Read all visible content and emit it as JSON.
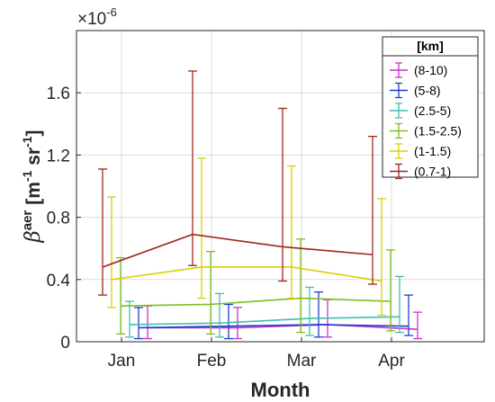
{
  "chart_data": {
    "type": "line",
    "xlabel": "Month",
    "ylabel_base": "β",
    "ylabel_sup": "aer",
    "ylabel_units_open": "[m",
    "ylabel_units_mid": " sr",
    "ylabel_units_close": "]",
    "ylabel_exp": "-1",
    "y_multiplier_base": "×10",
    "y_multiplier_exp": "-6",
    "categories": [
      "Jan",
      "Feb",
      "Mar",
      "Apr"
    ],
    "ylim": [
      0,
      2.0
    ],
    "yticks": [
      0,
      0.4,
      0.8,
      1.2,
      1.6
    ],
    "ytick_labels": [
      "0",
      "0.4",
      "0.8",
      "1.2",
      "1.6"
    ],
    "grid": true,
    "legend_title": "[km]",
    "legend_position": "top-right",
    "series": [
      {
        "name": "(8-10)",
        "color": "#cc33cc",
        "values": [
          0.09,
          0.09,
          0.11,
          0.08
        ],
        "lower": [
          0.02,
          0.02,
          0.03,
          0.02
        ],
        "upper": [
          0.23,
          0.22,
          0.27,
          0.19
        ]
      },
      {
        "name": "(5-8)",
        "color": "#1f3fcc",
        "values": [
          0.09,
          0.1,
          0.11,
          0.1
        ],
        "lower": [
          0.02,
          0.02,
          0.03,
          0.04
        ],
        "upper": [
          0.22,
          0.24,
          0.32,
          0.3
        ]
      },
      {
        "name": "(2.5-5)",
        "color": "#3fbfb0",
        "values": [
          0.11,
          0.12,
          0.15,
          0.16
        ],
        "lower": [
          0.03,
          0.03,
          0.04,
          0.06
        ],
        "upper": [
          0.26,
          0.31,
          0.35,
          0.42
        ]
      },
      {
        "name": "(1.5-2.5)",
        "color": "#7fbf1f",
        "values": [
          0.23,
          0.24,
          0.28,
          0.26
        ],
        "lower": [
          0.05,
          0.05,
          0.06,
          0.07
        ],
        "upper": [
          0.54,
          0.58,
          0.66,
          0.59
        ]
      },
      {
        "name": "(1-1.5)",
        "color": "#d9d000",
        "values": [
          0.4,
          0.48,
          0.48,
          0.39
        ],
        "lower": [
          0.22,
          0.28,
          0.28,
          0.17
        ],
        "upper": [
          0.93,
          1.18,
          1.13,
          0.92
        ]
      },
      {
        "name": "(0.7-1)",
        "color": "#a0261a",
        "values": [
          0.48,
          0.69,
          0.61,
          0.56
        ],
        "lower": [
          0.3,
          0.49,
          0.39,
          0.37
        ],
        "upper": [
          1.11,
          1.74,
          1.5,
          1.32
        ]
      }
    ]
  }
}
